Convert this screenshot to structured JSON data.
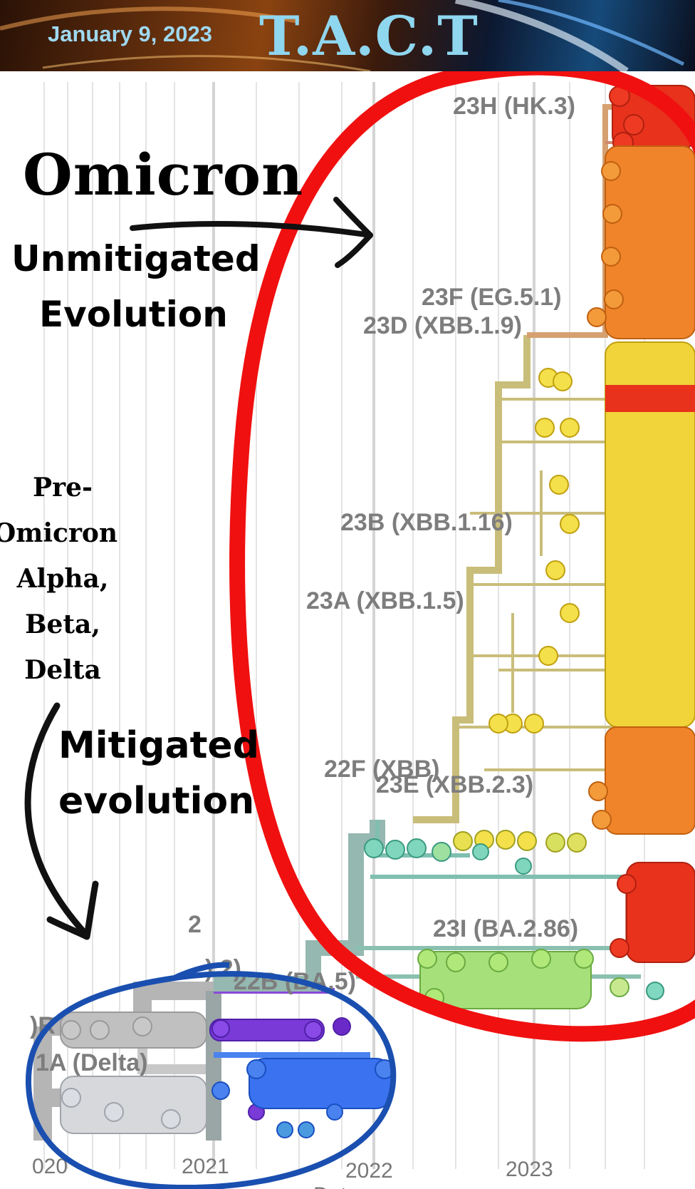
{
  "header": {
    "date": "January 9, 2023",
    "title": "T.A.C.T"
  },
  "annotations": {
    "omicron": "Omicron",
    "unmitigated_line1": "Unmitigated",
    "unmitigated_line2": "Evolution",
    "pre_omicron": [
      "Pre-",
      "Omicron",
      "Alpha,",
      "Beta,",
      "Delta"
    ],
    "mitigated_line1": "Mitigated",
    "mitigated_line2": "evolution"
  },
  "clade_labels": [
    {
      "text": "23H (HK.3)",
      "color": "#e8321c"
    },
    {
      "text": "23F (EG.5.1)",
      "color": "#f0842a"
    },
    {
      "text": "23D (XBB.1.9)",
      "color": "#f0842a"
    },
    {
      "text": "23B (XBB.1.16)",
      "color": "#f0d43a"
    },
    {
      "text": "23A (XBB.1.5)",
      "color": "#f0d43a"
    },
    {
      "text": "22F (XBB)",
      "color": "#f4e04a"
    },
    {
      "text": "23E (XBB.2.3)",
      "color": "#f0842a"
    },
    {
      "text": "23I (BA.2.86)",
      "color": "#e8321c"
    },
    {
      "text": "2",
      "color": "#999999"
    },
    {
      "text": "22B (BA.5)",
      "color": "#a6e07a"
    },
    {
      "text": ").2)",
      "color": "#a6e07a"
    },
    {
      "text": ")R",
      "color": "#999999"
    },
    {
      "text": "1A (Delta)",
      "color": "#bfbfbf"
    }
  ],
  "axis": {
    "ticks": [
      "020",
      "2021",
      "2022",
      "2023"
    ],
    "xlabel": "Date"
  },
  "colors": {
    "red_ellipse": "#f01010",
    "blue_ellipse": "#1a4fb0",
    "tree_trunk": "#c9bd7a",
    "omicron_early": "#7fbfb0"
  }
}
